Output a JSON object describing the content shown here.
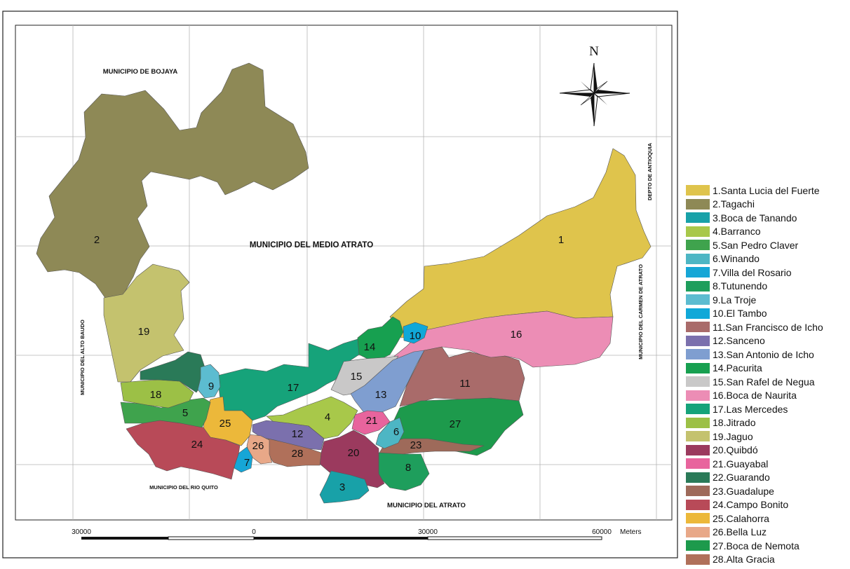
{
  "north_label": "N",
  "municipality_labels": {
    "bojaya": "MUNICIPIO DE BOJAYA",
    "medio_atrato": "MUNICIPIO DEL MEDIO ATRATO",
    "antioquia": "DEPTO DE ANTIOQUIA",
    "carmen_atrato": "MUNICIPIO DEL CARMEN DE ATRATO",
    "alto_baudo": "MUNICIPIO DEL ALTO BAUDO",
    "rio_quito": "MUNICIPIO DEL RIO QUITO",
    "atrato": "MUNICIPIO DEL ATRATO"
  },
  "scale_bar": {
    "ticks": [
      "30000",
      "0",
      "30000",
      "60000"
    ],
    "unit": "Meters"
  },
  "legend": [
    {
      "id": "1",
      "label": "1.Santa Lucia del Fuerte",
      "color": "#dfc44c"
    },
    {
      "id": "2",
      "label": "2.Tagachi",
      "color": "#8e8956"
    },
    {
      "id": "3",
      "label": "3.Boca de Tanando",
      "color": "#18a1a8"
    },
    {
      "id": "4",
      "label": "4.Barranco",
      "color": "#a8c84a"
    },
    {
      "id": "5",
      "label": "5.San Pedro Claver",
      "color": "#3fa34d"
    },
    {
      "id": "6",
      "label": "6.Winando",
      "color": "#4db6c4"
    },
    {
      "id": "7",
      "label": "7.Villa del Rosario",
      "color": "#16a6d6"
    },
    {
      "id": "8",
      "label": "8.Tutunendo",
      "color": "#1e9e5c"
    },
    {
      "id": "9",
      "label": "9.La Troje",
      "color": "#5cbcd0"
    },
    {
      "id": "10",
      "label": "10.El Tambo",
      "color": "#10a8d8"
    },
    {
      "id": "11",
      "label": "11.San Francisco de Icho",
      "color": "#a96b6a"
    },
    {
      "id": "12",
      "label": "12.Sanceno",
      "color": "#7b70ad"
    },
    {
      "id": "13",
      "label": "13.San Antonio de Icho",
      "color": "#7f9ed0"
    },
    {
      "id": "14",
      "label": "14.Pacurita",
      "color": "#17a050"
    },
    {
      "id": "15",
      "label": "15.San Rafel de Negua",
      "color": "#c9c8c8"
    },
    {
      "id": "16",
      "label": "16.Boca de Naurita",
      "color": "#ec8db5"
    },
    {
      "id": "17",
      "label": "17.Las Mercedes",
      "color": "#16a37a"
    },
    {
      "id": "18",
      "label": "18.Jitrado",
      "color": "#9cc046"
    },
    {
      "id": "19",
      "label": "19.Jaguo",
      "color": "#c4c26e"
    },
    {
      "id": "20",
      "label": "20.Quibdó",
      "color": "#9b3a5e"
    },
    {
      "id": "21",
      "label": "21.Guayabal",
      "color": "#e8649d"
    },
    {
      "id": "22",
      "label": "22.Guarando",
      "color": "#2a7a58"
    },
    {
      "id": "23",
      "label": "23.Guadalupe",
      "color": "#9e6a5a"
    },
    {
      "id": "24",
      "label": "24.Campo Bonito",
      "color": "#b84a58"
    },
    {
      "id": "25",
      "label": "25.Calahorra",
      "color": "#ecb83a"
    },
    {
      "id": "26",
      "label": "26.Bella Luz",
      "color": "#e8a888"
    },
    {
      "id": "27",
      "label": "27.Boca de Nemota",
      "color": "#1d9a4c"
    },
    {
      "id": "28",
      "label": "28.Alta Gracia",
      "color": "#b0705a"
    }
  ]
}
